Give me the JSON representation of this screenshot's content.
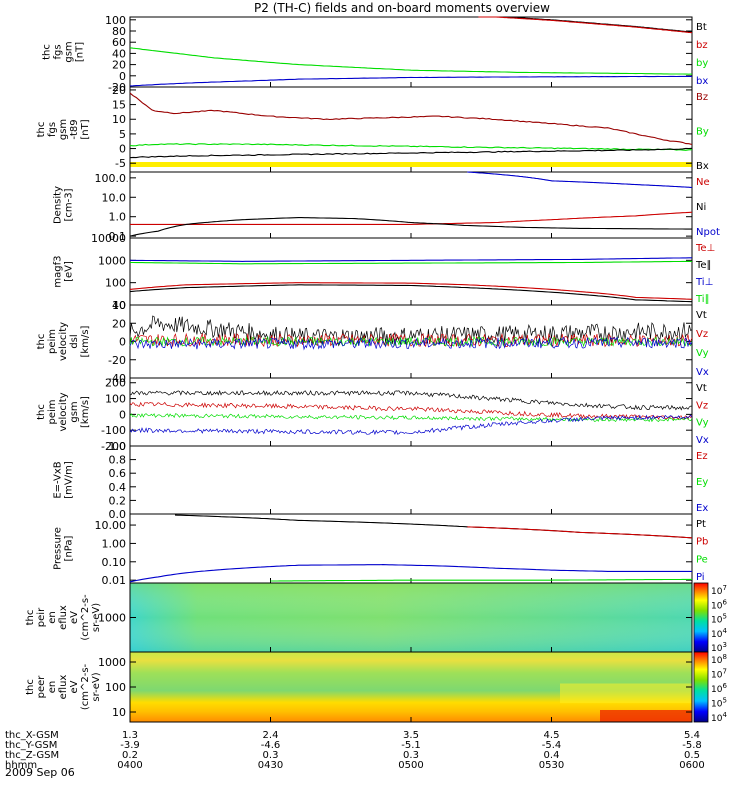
{
  "title": "P2 (TH-C) fields and on-board moments overview",
  "colors": {
    "black": "#000000",
    "red": "#cc0000",
    "green": "#00dd00",
    "blue": "#0000cc",
    "yellow": "#ffee00",
    "darkred": "#990000"
  },
  "time_axis": {
    "rows": [
      {
        "label": "thc_X-GSM",
        "values": [
          "1.3",
          "2.4",
          "3.5",
          "4.5",
          "5.4"
        ]
      },
      {
        "label": "thc_Y-GSM",
        "values": [
          "-3.9",
          "-4.6",
          "-5.1",
          "-5.4",
          "-5.8"
        ]
      },
      {
        "label": "thc_Z-GSM",
        "values": [
          "0.2",
          "0.3",
          "0.3",
          "0.4",
          "0.5"
        ]
      },
      {
        "label": "hhmm",
        "values": [
          "0400",
          "0430",
          "0500",
          "0530",
          "0600"
        ]
      }
    ],
    "date": "2009 Sep 06"
  },
  "chart_data": [
    {
      "id": "p1",
      "type": "line",
      "ylabel": [
        "thc",
        "fgs",
        "gsm",
        "[nT]"
      ],
      "yticks": [
        "100",
        "80",
        "60",
        "40",
        "20",
        "0",
        "-20"
      ],
      "ylim": [
        -20,
        105
      ],
      "legend": [
        {
          "name": "Bt",
          "color": "black"
        },
        {
          "name": "bz",
          "color": "red"
        },
        {
          "name": "by",
          "color": "green"
        },
        {
          "name": "bx",
          "color": "blue"
        }
      ],
      "series": [
        {
          "name": "Bt",
          "color": "black",
          "x": [
            0.62,
            0.75,
            0.9,
            1.0
          ],
          "y": [
            108,
            100,
            88,
            78
          ]
        },
        {
          "name": "bz",
          "color": "red",
          "x": [
            0.62,
            0.75,
            0.9,
            1.0
          ],
          "y": [
            107,
            99,
            87,
            77
          ]
        },
        {
          "name": "by",
          "color": "green",
          "x": [
            0,
            0.05,
            0.15,
            0.3,
            0.5,
            0.7,
            1.0
          ],
          "y": [
            50,
            44,
            32,
            20,
            10,
            6,
            3
          ]
        },
        {
          "name": "bx",
          "color": "blue",
          "x": [
            0,
            0.1,
            0.3,
            0.5,
            0.7,
            1.0
          ],
          "y": [
            -18,
            -13,
            -6,
            -3,
            -2,
            -1
          ]
        }
      ]
    },
    {
      "id": "p2",
      "type": "line",
      "ylabel": [
        "thc",
        "fgs",
        "gsm",
        "-t89",
        "[nT]"
      ],
      "yticks": [
        "20",
        "15",
        "10",
        "5",
        "0",
        "-5"
      ],
      "ylim": [
        -8,
        21
      ],
      "legend": [
        {
          "name": "Bz",
          "color": "darkred"
        },
        {
          "name": "By",
          "color": "green"
        },
        {
          "name": "Bx",
          "color": "black"
        }
      ],
      "band": {
        "color": "yellow"
      },
      "series": [
        {
          "name": "Bz",
          "color": "darkred",
          "x": [
            0,
            0.04,
            0.08,
            0.15,
            0.25,
            0.35,
            0.45,
            0.55,
            0.65,
            0.75,
            0.85,
            0.95,
            1.0
          ],
          "y": [
            19,
            13,
            12,
            13,
            11,
            10,
            10.5,
            11,
            10,
            8.5,
            7,
            3,
            1.5
          ]
        },
        {
          "name": "By",
          "color": "green",
          "x": [
            0,
            0.05,
            0.2,
            0.4,
            0.6,
            0.8,
            1.0
          ],
          "y": [
            1,
            1.5,
            1.5,
            1,
            0.5,
            0,
            -0.5
          ]
        },
        {
          "name": "Bx",
          "color": "black",
          "x": [
            0,
            0.1,
            0.3,
            0.5,
            0.7,
            0.9,
            1.0
          ],
          "y": [
            -3,
            -2.5,
            -2,
            -1.5,
            -1,
            -0.5,
            0
          ]
        }
      ]
    },
    {
      "id": "p3",
      "type": "line",
      "yscale": "log",
      "ylabel": [
        "Density",
        "[cm-3]"
      ],
      "yticks": [
        "100.0",
        "10.0",
        "1.0",
        "0.1"
      ],
      "ylim": [
        0.08,
        200
      ],
      "legend": [
        {
          "name": "Ne",
          "color": "red"
        },
        {
          "name": "Ni",
          "color": "black"
        },
        {
          "name": "Npot",
          "color": "blue"
        }
      ],
      "series": [
        {
          "name": "Npot",
          "color": "blue",
          "x": [
            0.6,
            0.75,
            0.9,
            1.0
          ],
          "y": [
            200,
            70,
            45,
            32
          ]
        },
        {
          "name": "Ne",
          "color": "red",
          "x": [
            0,
            0.3,
            0.5,
            0.65,
            0.75,
            0.9,
            1.0
          ],
          "y": [
            0.4,
            0.4,
            0.4,
            0.5,
            0.7,
            1.1,
            1.7
          ]
        },
        {
          "name": "Ni",
          "color": "black",
          "x": [
            0,
            0.05,
            0.1,
            0.2,
            0.3,
            0.4,
            0.5,
            0.6,
            0.7,
            0.8,
            1.0
          ],
          "y": [
            0.1,
            0.18,
            0.4,
            0.7,
            0.9,
            0.8,
            0.5,
            0.35,
            0.28,
            0.25,
            0.23
          ]
        }
      ]
    },
    {
      "id": "p4",
      "type": "line",
      "yscale": "log",
      "ylabel": [
        "magf3",
        "[eV]"
      ],
      "yticks": [
        "10000",
        "1000",
        "100",
        "10"
      ],
      "ylim": [
        10,
        10000
      ],
      "legend": [
        {
          "name": "Te⊥",
          "color": "red"
        },
        {
          "name": "Te∥",
          "color": "black"
        },
        {
          "name": "Ti⊥",
          "color": "blue"
        },
        {
          "name": "Ti∥",
          "color": "green"
        }
      ],
      "series": [
        {
          "name": "Ti⊥",
          "color": "blue",
          "x": [
            0,
            0.2,
            0.5,
            0.8,
            1.0
          ],
          "y": [
            1000,
            900,
            1000,
            1100,
            1300
          ]
        },
        {
          "name": "Ti∥",
          "color": "green",
          "x": [
            0,
            0.2,
            0.5,
            0.8,
            1.0
          ],
          "y": [
            800,
            700,
            750,
            800,
            900
          ]
        },
        {
          "name": "Te⊥",
          "color": "red",
          "x": [
            0,
            0.1,
            0.3,
            0.5,
            0.6,
            0.7,
            0.8,
            0.9,
            1.0
          ],
          "y": [
            50,
            80,
            100,
            95,
            80,
            60,
            40,
            22,
            18
          ]
        },
        {
          "name": "Te∥",
          "color": "black",
          "x": [
            0,
            0.1,
            0.3,
            0.5,
            0.6,
            0.7,
            0.8,
            0.9,
            1.0
          ],
          "y": [
            40,
            60,
            80,
            75,
            60,
            45,
            30,
            17,
            14
          ]
        }
      ]
    },
    {
      "id": "p5",
      "type": "line",
      "noise": true,
      "ylabel": [
        "thc",
        "peim",
        "velocity",
        "dsl",
        "[km/s]"
      ],
      "yticks": [
        "40",
        "20",
        "0",
        "-20",
        "-40"
      ],
      "ylim": [
        -40,
        40
      ],
      "legend": [
        {
          "name": "Vt",
          "color": "black"
        },
        {
          "name": "Vz",
          "color": "red"
        },
        {
          "name": "Vy",
          "color": "green"
        },
        {
          "name": "Vx",
          "color": "blue"
        }
      ],
      "series": [
        {
          "name": "Vt",
          "color": "black",
          "x": [
            0,
            0.05,
            0.3,
            0.7,
            1.0
          ],
          "y": [
            10,
            20,
            5,
            8,
            12
          ],
          "amp": 10
        },
        {
          "name": "Vz",
          "color": "red",
          "x": [
            0,
            1
          ],
          "y": [
            2,
            1
          ],
          "amp": 7
        },
        {
          "name": "Vy",
          "color": "green",
          "x": [
            0,
            1
          ],
          "y": [
            0,
            0
          ],
          "amp": 5
        },
        {
          "name": "Vx",
          "color": "blue",
          "x": [
            0,
            1
          ],
          "y": [
            -3,
            -1
          ],
          "amp": 6
        }
      ]
    },
    {
      "id": "p6",
      "type": "line",
      "noise": true,
      "ylabel": [
        "thc",
        "peim",
        "velocity",
        "gsm",
        "[km/s]"
      ],
      "yticks": [
        "200",
        "100",
        "0",
        "-100",
        "-200"
      ],
      "ylim": [
        -200,
        230
      ],
      "legend": [
        {
          "name": "Vt",
          "color": "black"
        },
        {
          "name": "Vz",
          "color": "red"
        },
        {
          "name": "Vy",
          "color": "green"
        },
        {
          "name": "Vx",
          "color": "blue"
        }
      ],
      "series": [
        {
          "name": "Vt",
          "color": "black",
          "x": [
            0,
            0.2,
            0.5,
            0.6,
            0.7,
            0.8,
            0.9,
            1.0
          ],
          "y": [
            135,
            135,
            135,
            110,
            85,
            60,
            45,
            40
          ],
          "amp": 14
        },
        {
          "name": "Vz",
          "color": "red",
          "x": [
            0,
            0.2,
            0.5,
            0.6,
            0.7,
            0.8,
            1.0
          ],
          "y": [
            65,
            55,
            35,
            20,
            5,
            -10,
            -20
          ],
          "amp": 14
        },
        {
          "name": "Vy",
          "color": "green",
          "x": [
            0,
            0.3,
            0.6,
            0.75,
            0.9,
            1.0
          ],
          "y": [
            -5,
            -15,
            -25,
            -30,
            -35,
            -30
          ],
          "amp": 12
        },
        {
          "name": "Vx",
          "color": "blue",
          "x": [
            0,
            0.3,
            0.5,
            0.6,
            0.7,
            0.8,
            0.9,
            1.0
          ],
          "y": [
            -100,
            -110,
            -115,
            -80,
            -50,
            -30,
            -20,
            -15
          ],
          "amp": 14
        }
      ]
    },
    {
      "id": "p7",
      "type": "line",
      "ylabel": [
        "E=-VxB",
        "[mV/m]"
      ],
      "yticks": [
        "1.0",
        "0.8",
        "0.6",
        "0.4",
        "0.2",
        "0.0"
      ],
      "ylim": [
        0,
        1
      ],
      "legend": [
        {
          "name": "Ez",
          "color": "red"
        },
        {
          "name": "Ey",
          "color": "green"
        },
        {
          "name": "Ex",
          "color": "blue"
        }
      ],
      "series": []
    },
    {
      "id": "p8",
      "type": "line",
      "yscale": "log",
      "ylabel": [
        "Pressure",
        "[nPa]"
      ],
      "yticks": [
        "10.00",
        "1.00",
        "0.10",
        "0.01"
      ],
      "ylim": [
        0.007,
        40
      ],
      "legend": [
        {
          "name": "Pt",
          "color": "black"
        },
        {
          "name": "Pb",
          "color": "red"
        },
        {
          "name": "Pe",
          "color": "green"
        },
        {
          "name": "Pi",
          "color": "blue"
        }
      ],
      "series": [
        {
          "name": "Pt",
          "color": "black",
          "x": [
            0.08,
            0.3,
            0.6,
            0.8,
            1.0
          ],
          "y": [
            35,
            18,
            8,
            4,
            2
          ]
        },
        {
          "name": "Pb",
          "color": "red",
          "x": [
            0.6,
            0.8,
            1.0
          ],
          "y": [
            8,
            4,
            2
          ]
        },
        {
          "name": "Pi",
          "color": "blue",
          "x": [
            0,
            0.05,
            0.15,
            0.3,
            0.45,
            0.55,
            0.65,
            0.75,
            0.85,
            1.0
          ],
          "y": [
            0.008,
            0.015,
            0.035,
            0.065,
            0.07,
            0.06,
            0.045,
            0.035,
            0.03,
            0.03
          ]
        },
        {
          "name": "Pe",
          "color": "green",
          "x": [
            0.25,
            0.5,
            0.75,
            1.0
          ],
          "y": [
            0.009,
            0.01,
            0.01,
            0.011
          ]
        }
      ]
    },
    {
      "id": "p9",
      "type": "heatmap",
      "ylabel": [
        "thc",
        "peir",
        "en",
        "eflux",
        "eV",
        "(cm^2-s-",
        "sr-eV)"
      ],
      "yticks": [
        "1000"
      ],
      "colorbar": [
        "10^7",
        "10^6",
        "10^5",
        "10^4",
        "10^3"
      ]
    },
    {
      "id": "p10",
      "type": "heatmap",
      "ylabel": [
        "thc",
        "peer",
        "en",
        "eflux",
        "eV",
        "(cm^2-s-",
        "sr-eV)"
      ],
      "yticks": [
        "1000",
        "100",
        "10"
      ],
      "colorbar": [
        "10^8",
        "10^7",
        "10^6",
        "10^5",
        "10^4"
      ]
    }
  ]
}
